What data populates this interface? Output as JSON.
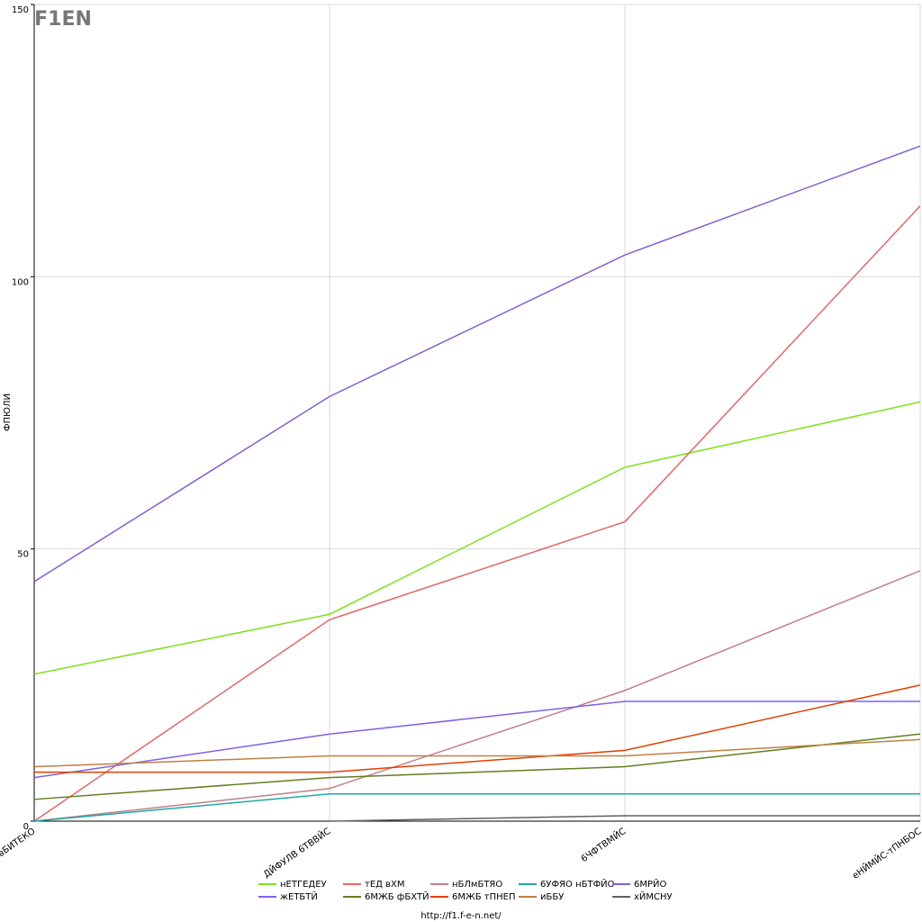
{
  "chart_data": {
    "type": "line",
    "y_label": "ФПЮЛИ",
    "footer": "http://f1.f-e-n.net/",
    "logo": "F1EN",
    "categories": [
      "вБИТЕКО",
      "ДЙФУЛВ 6ТВВЙС",
      "6ЧФТВМЙС",
      "еНЙМЙС-тПНБОС"
    ],
    "ylim": [
      0,
      150
    ],
    "yticks": [
      0,
      50,
      100,
      150
    ],
    "grid": true,
    "legend": "bottom",
    "series": [
      {
        "name": "нЕТГЕДЕУ",
        "color": "#80e020",
        "values": [
          27,
          38,
          65,
          77
        ]
      },
      {
        "name": "тЕД вХМ",
        "color": "#e06868",
        "values": [
          0,
          37,
          55,
          113
        ]
      },
      {
        "name": "нБЛмБТЯО",
        "color": "#c08088",
        "values": [
          0,
          6,
          24,
          46
        ]
      },
      {
        "name": "6УФЯО нБТФЙО",
        "color": "#20a8a8",
        "values": [
          0,
          5,
          5,
          5
        ]
      },
      {
        "name": "6МРЙО",
        "color": "#8060d0",
        "values": [
          44,
          78,
          104,
          124
        ]
      },
      {
        "name": "жЕТБТЙ",
        "color": "#8060e8",
        "values": [
          8,
          16,
          22,
          22
        ]
      },
      {
        "name": "6МЖБ фБХТЙ",
        "color": "#608020",
        "values": [
          4,
          8,
          10,
          16
        ]
      },
      {
        "name": "6МЖБ тПНЕП",
        "color": "#e04000",
        "values": [
          9,
          9,
          13,
          25
        ]
      },
      {
        "name": "иББУ",
        "color": "#c08040",
        "values": [
          10,
          12,
          12,
          15
        ]
      },
      {
        "name": "хЙМСНУ",
        "color": "#606060",
        "values": [
          null,
          0,
          1,
          1
        ]
      }
    ]
  }
}
